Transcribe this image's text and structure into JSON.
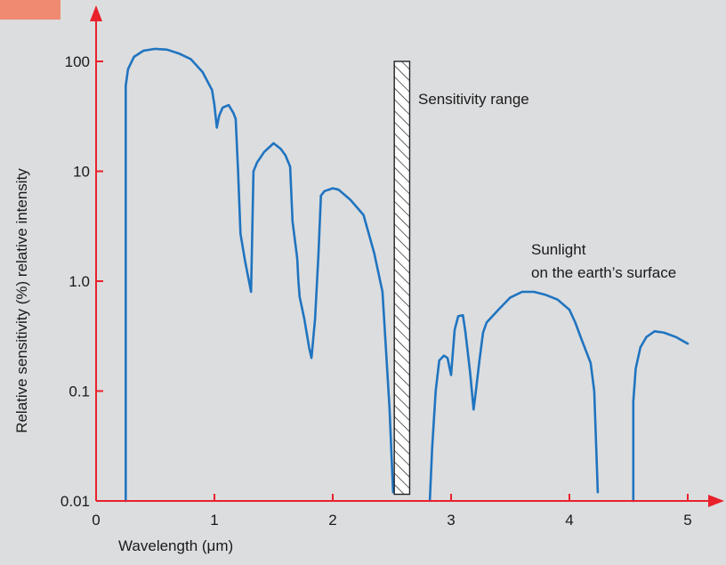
{
  "chart_data": {
    "type": "line",
    "xlabel": "Wavelength (μm)",
    "ylabel": "Relative sensitivity (%) relative intensity",
    "x_ticks": [
      "0",
      "1",
      "2",
      "3",
      "4",
      "5"
    ],
    "y_ticks": [
      "0.01",
      "0.1",
      "1.0",
      "10",
      "100"
    ],
    "xlim": [
      0,
      5
    ],
    "ylim": [
      0.01,
      100
    ],
    "y_scale": "log",
    "grid": false,
    "colors": {
      "curve": "#1f74c0",
      "axis": "#e8212b",
      "badge": "#f08a70",
      "bar_hatch": "#222222"
    },
    "annotations": {
      "sensitivity_range": "Sensitivity range",
      "sunlight_line1": "Sunlight",
      "sunlight_line2": "on the earth’s surface"
    },
    "sensitivity_band": {
      "x_range": [
        2.52,
        2.65
      ],
      "y_range": [
        0.0115,
        100
      ]
    },
    "series": [
      {
        "segments": [
          [
            [
              0.25,
              0.01
            ],
            [
              0.25,
              60
            ],
            [
              0.27,
              85
            ],
            [
              0.32,
              110
            ],
            [
              0.4,
              125
            ],
            [
              0.5,
              130
            ],
            [
              0.6,
              128
            ],
            [
              0.7,
              118
            ],
            [
              0.8,
              105
            ],
            [
              0.9,
              80
            ],
            [
              0.98,
              55
            ],
            [
              1.0,
              40
            ],
            [
              1.02,
              25
            ],
            [
              1.04,
              32
            ],
            [
              1.07,
              38
            ],
            [
              1.12,
              40
            ],
            [
              1.16,
              34
            ],
            [
              1.18,
              30
            ],
            [
              1.2,
              10
            ],
            [
              1.22,
              2.7
            ],
            [
              1.26,
              1.5
            ],
            [
              1.31,
              0.8
            ],
            [
              1.33,
              10
            ],
            [
              1.36,
              12
            ],
            [
              1.42,
              15
            ],
            [
              1.5,
              18
            ],
            [
              1.56,
              16
            ],
            [
              1.6,
              14
            ],
            [
              1.64,
              11
            ],
            [
              1.66,
              3.5
            ],
            [
              1.7,
              1.6
            ],
            [
              1.71,
              1.0
            ],
            [
              1.72,
              0.72
            ],
            [
              1.76,
              0.45
            ],
            [
              1.8,
              0.25
            ],
            [
              1.82,
              0.2
            ],
            [
              1.85,
              0.45
            ],
            [
              1.88,
              1.8
            ],
            [
              1.9,
              6
            ],
            [
              1.93,
              6.6
            ],
            [
              2.0,
              7.0
            ],
            [
              2.05,
              6.8
            ],
            [
              2.15,
              5.5
            ],
            [
              2.26,
              4.0
            ],
            [
              2.35,
              1.8
            ],
            [
              2.42,
              0.8
            ],
            [
              2.48,
              0.07
            ],
            [
              2.51,
              0.012
            ]
          ],
          [
            [
              2.82,
              0.01
            ],
            [
              2.84,
              0.03
            ],
            [
              2.87,
              0.1
            ],
            [
              2.9,
              0.19
            ],
            [
              2.94,
              0.21
            ],
            [
              2.97,
              0.2
            ],
            [
              3.0,
              0.14
            ],
            [
              3.03,
              0.36
            ],
            [
              3.06,
              0.48
            ],
            [
              3.1,
              0.49
            ],
            [
              3.12,
              0.35
            ],
            [
              3.16,
              0.15
            ],
            [
              3.19,
              0.068
            ],
            [
              3.21,
              0.1
            ],
            [
              3.24,
              0.19
            ],
            [
              3.27,
              0.34
            ],
            [
              3.3,
              0.42
            ],
            [
              3.4,
              0.55
            ],
            [
              3.5,
              0.71
            ],
            [
              3.6,
              0.8
            ],
            [
              3.7,
              0.8
            ],
            [
              3.8,
              0.75
            ],
            [
              3.9,
              0.68
            ],
            [
              4.0,
              0.55
            ],
            [
              4.05,
              0.42
            ],
            [
              4.1,
              0.3
            ],
            [
              4.18,
              0.18
            ],
            [
              4.21,
              0.1
            ],
            [
              4.24,
              0.012
            ]
          ],
          [
            [
              4.54,
              0.01
            ],
            [
              4.54,
              0.08
            ],
            [
              4.56,
              0.16
            ],
            [
              4.6,
              0.25
            ],
            [
              4.65,
              0.31
            ],
            [
              4.72,
              0.35
            ],
            [
              4.8,
              0.34
            ],
            [
              4.9,
              0.31
            ],
            [
              5.0,
              0.27
            ]
          ]
        ]
      }
    ]
  }
}
